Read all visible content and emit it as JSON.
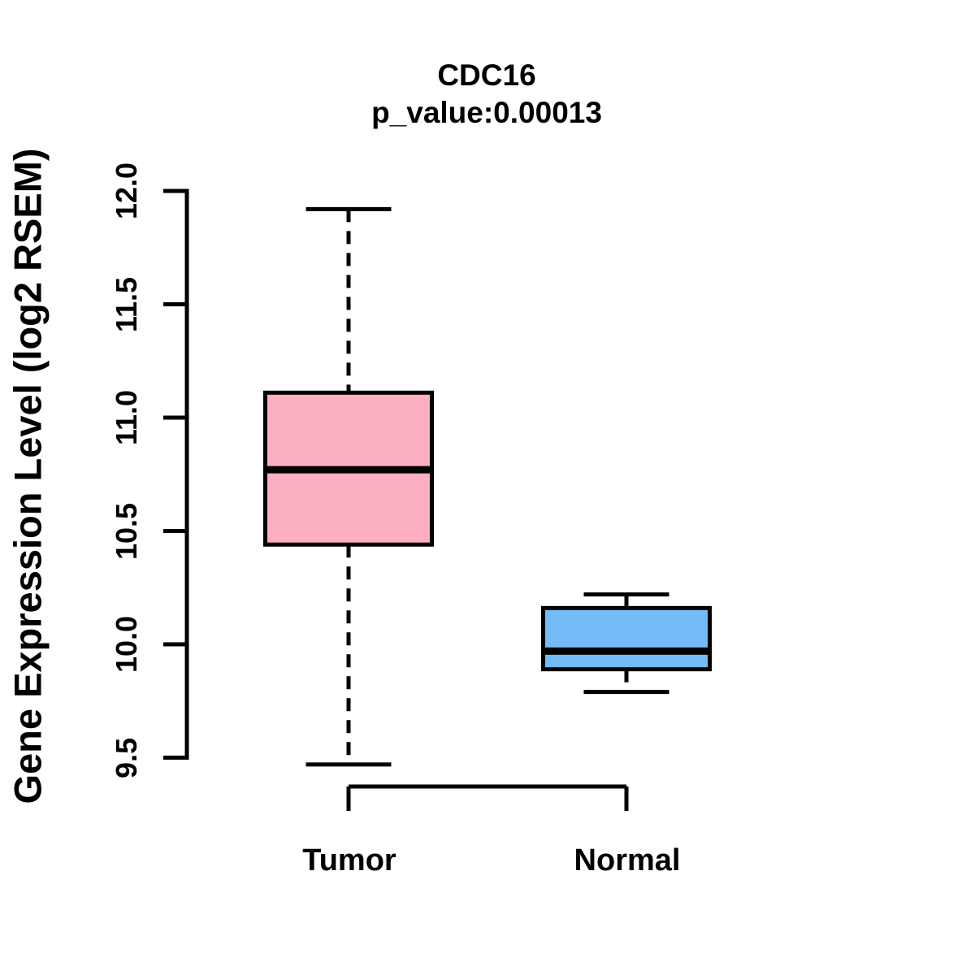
{
  "chart_data": {
    "type": "boxplot",
    "title": "CDC16",
    "subtitle": "p_value:0.00013",
    "ylabel": "Gene Expression Level (log2 RSEM)",
    "xlabel": "",
    "ylim": [
      9.5,
      12.0
    ],
    "y_ticks": [
      9.5,
      10.0,
      10.5,
      11.0,
      11.5,
      12.0
    ],
    "y_tick_labels": [
      "9.5",
      "10.0",
      "10.5",
      "11.0",
      "11.5",
      "12.0"
    ],
    "grid": false,
    "legend": "none",
    "whisker_style": "dashed",
    "categories": [
      "Tumor",
      "Normal"
    ],
    "series": [
      {
        "name": "Tumor",
        "fill_color": "#FCAFC1",
        "whisker_low": 9.47,
        "q1": 10.44,
        "median": 10.77,
        "q3": 11.11,
        "whisker_high": 11.92,
        "outliers": []
      },
      {
        "name": "Normal",
        "fill_color": "#74BCF7",
        "whisker_low": 9.79,
        "q1": 9.89,
        "median": 9.97,
        "q3": 10.16,
        "whisker_high": 10.22,
        "outliers": []
      }
    ],
    "colors": {
      "box_border": "#000000",
      "median_line": "#000000",
      "whisker": "#000000",
      "axis": "#000000",
      "text": "#000000",
      "background": "#FFFFFF"
    }
  }
}
